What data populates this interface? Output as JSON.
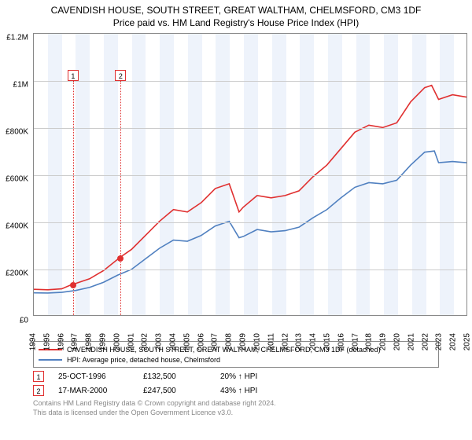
{
  "title": "CAVENDISH HOUSE, SOUTH STREET, GREAT WALTHAM, CHELMSFORD, CM3 1DF",
  "subtitle": "Price paid vs. HM Land Registry's House Price Index (HPI)",
  "chart": {
    "type": "line",
    "x_years": [
      1994,
      1995,
      1996,
      1997,
      1998,
      1999,
      2000,
      2001,
      2002,
      2003,
      2004,
      2005,
      2006,
      2007,
      2008,
      2009,
      2010,
      2011,
      2012,
      2013,
      2014,
      2015,
      2016,
      2017,
      2018,
      2019,
      2020,
      2021,
      2022,
      2023,
      2024,
      2025
    ],
    "ylim": [
      0,
      1200000
    ],
    "ytick_step": 200000,
    "ytick_labels": [
      "£0",
      "£200K",
      "£400K",
      "£600K",
      "£800K",
      "£1M",
      "£1.2M"
    ],
    "background_color": "#ffffff",
    "grid_color": "#cccccc",
    "border_color": "#888888",
    "band_color": "#eef3fb",
    "line_width": 1.6,
    "series": [
      {
        "name": "CAVENDISH HOUSE, SOUTH STREET, GREAT WALTHAM, CHELMSFORD, CM3 1DF (detached)",
        "color": "#e03030",
        "data": [
          [
            1994,
            110000
          ],
          [
            1995,
            108000
          ],
          [
            1996,
            112000
          ],
          [
            1996.8,
            132500
          ],
          [
            1997,
            135000
          ],
          [
            1998,
            155000
          ],
          [
            1999,
            190000
          ],
          [
            2000.2,
            247500
          ],
          [
            2001,
            280000
          ],
          [
            2002,
            340000
          ],
          [
            2003,
            400000
          ],
          [
            2004,
            450000
          ],
          [
            2005,
            440000
          ],
          [
            2006,
            480000
          ],
          [
            2007,
            540000
          ],
          [
            2008,
            560000
          ],
          [
            2008.7,
            440000
          ],
          [
            2009,
            460000
          ],
          [
            2010,
            510000
          ],
          [
            2011,
            500000
          ],
          [
            2012,
            510000
          ],
          [
            2013,
            530000
          ],
          [
            2014,
            590000
          ],
          [
            2015,
            640000
          ],
          [
            2016,
            710000
          ],
          [
            2017,
            780000
          ],
          [
            2018,
            810000
          ],
          [
            2019,
            800000
          ],
          [
            2020,
            820000
          ],
          [
            2021,
            910000
          ],
          [
            2022,
            970000
          ],
          [
            2022.5,
            980000
          ],
          [
            2023,
            920000
          ],
          [
            2024,
            940000
          ],
          [
            2025,
            930000
          ]
        ]
      },
      {
        "name": "HPI: Average price, detached house, Chelmsford",
        "color": "#5080c0",
        "data": [
          [
            1994,
            95000
          ],
          [
            1995,
            94000
          ],
          [
            1996,
            97000
          ],
          [
            1997,
            105000
          ],
          [
            1998,
            118000
          ],
          [
            1999,
            140000
          ],
          [
            2000,
            170000
          ],
          [
            2001,
            195000
          ],
          [
            2002,
            240000
          ],
          [
            2003,
            285000
          ],
          [
            2004,
            320000
          ],
          [
            2005,
            315000
          ],
          [
            2006,
            340000
          ],
          [
            2007,
            380000
          ],
          [
            2008,
            400000
          ],
          [
            2008.7,
            330000
          ],
          [
            2009,
            335000
          ],
          [
            2010,
            365000
          ],
          [
            2011,
            355000
          ],
          [
            2012,
            360000
          ],
          [
            2013,
            375000
          ],
          [
            2014,
            415000
          ],
          [
            2015,
            450000
          ],
          [
            2016,
            500000
          ],
          [
            2017,
            545000
          ],
          [
            2018,
            565000
          ],
          [
            2019,
            560000
          ],
          [
            2020,
            575000
          ],
          [
            2021,
            640000
          ],
          [
            2022,
            695000
          ],
          [
            2022.7,
            700000
          ],
          [
            2023,
            650000
          ],
          [
            2024,
            655000
          ],
          [
            2025,
            650000
          ]
        ]
      }
    ],
    "sale_markers": [
      {
        "label": "1",
        "x": 1996.8,
        "price": 132500
      },
      {
        "label": "2",
        "x": 2000.2,
        "price": 247500
      }
    ],
    "marker_line_style": "dotted",
    "marker_box_border": "#e03030",
    "dot_color": "#e03030"
  },
  "legend": {
    "items": [
      {
        "color": "#e03030",
        "label": "CAVENDISH HOUSE, SOUTH STREET, GREAT WALTHAM, CHELMSFORD, CM3 1DF (detached)"
      },
      {
        "color": "#5080c0",
        "label": "HPI: Average price, detached house, Chelmsford"
      }
    ]
  },
  "events": [
    {
      "marker": "1",
      "date": "25-OCT-1996",
      "price": "£132,500",
      "delta": "20% ↑ HPI"
    },
    {
      "marker": "2",
      "date": "17-MAR-2000",
      "price": "£247,500",
      "delta": "43% ↑ HPI"
    }
  ],
  "attribution": {
    "line1": "Contains HM Land Registry data © Crown copyright and database right 2024.",
    "line2": "This data is licensed under the Open Government Licence v3.0."
  }
}
